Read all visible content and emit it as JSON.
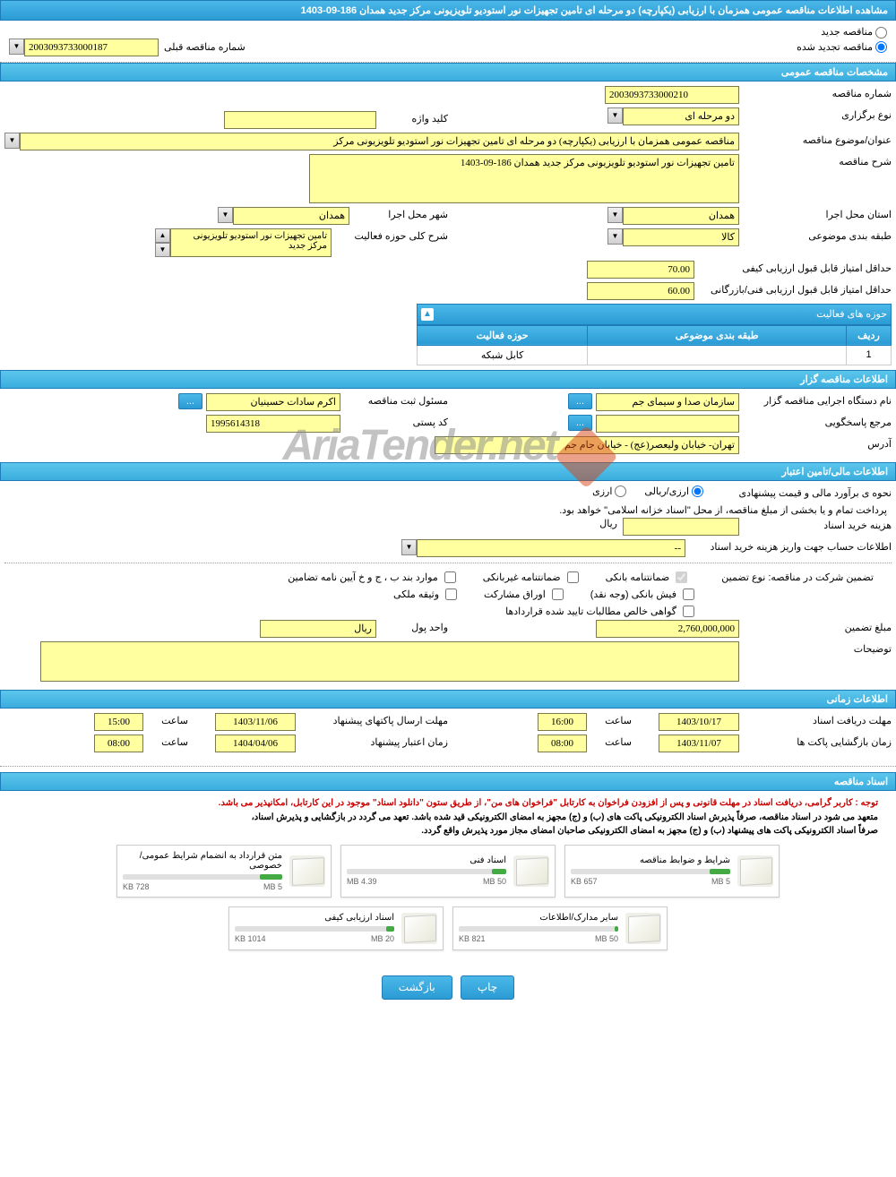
{
  "page_title": "مشاهده اطلاعات مناقصه عمومی همزمان با ارزیابی (یکپارچه) دو مرحله ای تامین تجهیزات نور استودیو تلویزیونی مرکز جدید همدان 186-09-1403",
  "status": {
    "new_tender": "مناقصه جدید",
    "renewed_tender": "مناقصه تجدید شده",
    "prev_number_label": "شماره مناقصه قبلی",
    "prev_number": "2003093733000187"
  },
  "sections": {
    "general": "مشخصات مناقصه عمومی",
    "organizer": "اطلاعات مناقصه گزار",
    "financial": "اطلاعات مالی/تامین اعتبار",
    "timing": "اطلاعات زمانی",
    "documents": "اسناد مناقصه"
  },
  "general": {
    "tender_number_label": "شماره مناقصه",
    "tender_number": "2003093733000210",
    "holding_type_label": "نوع برگزاری",
    "holding_type": "دو مرحله ای",
    "keyword_label": "کلید واژه",
    "keyword": "",
    "subject_label": "عنوان/موضوع مناقصه",
    "subject": "مناقصه عمومی همزمان با ارزیابی (یکپارچه) دو مرحله ای تامین تجهیزات نور استودیو تلویزیونی مرکز",
    "description_label": "شرح مناقصه",
    "description": "تامین تجهیزات نور استودیو تلویزیونی مرکز جدید همدان 186-09-1403",
    "province_label": "استان محل اجرا",
    "province": "همدان",
    "city_label": "شهر محل اجرا",
    "city": "همدان",
    "category_label": "طبقه بندی موضوعی",
    "category": "کالا",
    "activity_scope_label": "شرح کلی حوزه فعالیت",
    "activity_scope": "تامین تجهیزات نور استودیو تلویزیونی مرکز جدید",
    "min_quality_score_label": "حداقل امتیاز قابل قبول ارزیابی کیفی",
    "min_quality_score": "70.00",
    "min_tech_score_label": "حداقل امتیاز قابل قبول ارزیابی فنی/بازرگانی",
    "min_tech_score": "60.00"
  },
  "activity_table": {
    "title": "حوزه های فعالیت",
    "col_row": "ردیف",
    "col_category": "طبقه بندی موضوعی",
    "col_scope": "حوزه فعالیت",
    "rows": [
      {
        "n": "1",
        "category": "",
        "scope": "کابل شبکه"
      }
    ]
  },
  "organizer": {
    "exec_name_label": "نام دستگاه اجرایی مناقصه گزار",
    "exec_name": "سازمان صدا و سیمای جم",
    "responsible_label": "مسئول ثبت مناقصه",
    "responsible": "اکرم سادات حسینیان",
    "reply_ref_label": "مرجع پاسخگویی",
    "reply_ref": "",
    "postal_code_label": "کد پستی",
    "postal_code": "1995614318",
    "address_label": "آدرس",
    "address": "تهران- خیابان ولیعصر(عج) - خیابان جام جم"
  },
  "financial": {
    "estimate_label": "نحوه ی برآورد مالی و قیمت پیشنهادی",
    "opt_rial": "ارزی/ریالی",
    "opt_currency": "ارزی",
    "payment_note": "پرداخت تمام و یا بخشی از مبلغ مناقصه، از محل \"اسناد خزانه اسلامی\" خواهد بود.",
    "doc_cost_label": "هزینه خرید اسناد",
    "doc_cost": "",
    "doc_cost_unit": "ریال",
    "account_info_label": "اطلاعات حساب جهت واریز هزینه خرید اسناد",
    "account_info": "--",
    "guarantee_label": "تضمین شرکت در مناقصه:   نوع تضمین",
    "chk_bank_guarantee": "ضمانتنامه بانکی",
    "chk_nonbank_guarantee": "ضمانتنامه غیربانکی",
    "chk_clauses": "موارد بند ب ، ج و خ آیین نامه تضامین",
    "chk_bank_receipt": "فیش بانکی (وجه نقد)",
    "chk_securities": "اوراق مشارکت",
    "chk_property": "وثیقه ملکی",
    "chk_receivables": "گواهی خالص مطالبات تایید شده قراردادها",
    "amount_label": "مبلغ تضمین",
    "amount": "2,760,000,000",
    "unit_label": "واحد پول",
    "unit": "ریال",
    "notes_label": "توضیحات",
    "notes": ""
  },
  "timing": {
    "receive_deadline_label": "مهلت دریافت اسناد",
    "receive_date": "1403/10/17",
    "time_label": "ساعت",
    "receive_time": "16:00",
    "send_deadline_label": "مهلت ارسال پاکتهای پیشنهاد",
    "send_date": "1403/11/06",
    "send_time": "15:00",
    "open_label": "زمان بازگشایی پاکت ها",
    "open_date": "1403/11/07",
    "open_time": "08:00",
    "validity_label": "زمان اعتبار پیشنهاد",
    "validity_date": "1404/04/06",
    "validity_time": "08:00"
  },
  "documents": {
    "note1": "توجه : کاربر گرامی، دریافت اسناد در مهلت قانونی و پس از افزودن فراخوان به کارتابل \"فراخوان های من\"، از طریق ستون \"دانلود اسناد\" موجود در این کارتابل، امکانپذیر می باشد.",
    "note2": "متعهد می شود در اسناد مناقصه، صرفاً پذیرش اسناد الکترونیکی پاکت های (ب) و (ج) مجهز به امضای الکترونیکی قید شده باشد. تعهد می گردد در بازگشایی و پذیرش اسناد،",
    "note3": "صرفاً اسناد الکترونیکی پاکت های پیشنهاد (ب) و (ج) مجهز به امضای الکترونیکی صاحبان امضای مجاز مورد پذیرش واقع گردد.",
    "files": [
      {
        "title": "شرایط و ضوابط مناقصه",
        "size": "657 KB",
        "max": "5 MB",
        "pct": 13
      },
      {
        "title": "اسناد فنی",
        "size": "4.39 MB",
        "max": "50 MB",
        "pct": 9
      },
      {
        "title": "متن قرارداد به انضمام شرایط عمومی/خصوصی",
        "size": "728 KB",
        "max": "5 MB",
        "pct": 14
      },
      {
        "title": "سایر مدارک/اطلاعات",
        "size": "821 KB",
        "max": "50 MB",
        "pct": 2
      },
      {
        "title": "اسناد ارزیابی کیفی",
        "size": "1014 KB",
        "max": "20 MB",
        "pct": 5
      }
    ]
  },
  "buttons": {
    "print": "چاپ",
    "back": "بازگشت",
    "more": "..."
  },
  "watermark": "AriaTender.net",
  "colors": {
    "header_bg": "#3aadde",
    "yellow": "#ffffa0",
    "border": "#7a7a4a"
  }
}
